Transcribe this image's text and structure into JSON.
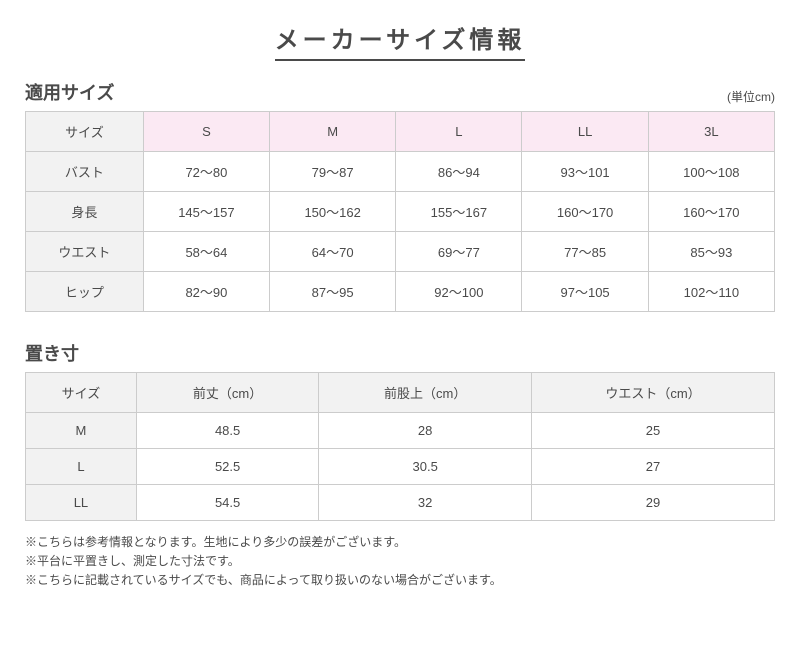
{
  "main_title": "メーカーサイズ情報",
  "section1": {
    "title": "適用サイズ",
    "unit": "(単位cm)",
    "table": {
      "colors": {
        "header_gray": "#f2f2f2",
        "header_pink": "#fbe9f3",
        "border": "#cccccc"
      },
      "header_row": [
        "サイズ",
        "S",
        "M",
        "L",
        "LL",
        "3L"
      ],
      "header_classes": [
        "hdr-gray",
        "hdr-pink",
        "hdr-pink",
        "hdr-pink",
        "hdr-pink",
        "hdr-pink"
      ],
      "rows": [
        {
          "label": "バスト",
          "values": [
            "72〜80",
            "79〜87",
            "86〜94",
            "93〜101",
            "100〜108"
          ]
        },
        {
          "label": "身長",
          "values": [
            "145〜157",
            "150〜162",
            "155〜167",
            "160〜170",
            "160〜170"
          ]
        },
        {
          "label": "ウエスト",
          "values": [
            "58〜64",
            "64〜70",
            "69〜77",
            "77〜85",
            "85〜93"
          ]
        },
        {
          "label": "ヒップ",
          "values": [
            "82〜90",
            "87〜95",
            "92〜100",
            "97〜105",
            "102〜110"
          ]
        }
      ]
    }
  },
  "section2": {
    "title": "置き寸",
    "table": {
      "colors": {
        "header_gray": "#f2f2f2",
        "border": "#cccccc"
      },
      "header_row": [
        "サイズ",
        "前丈（cm）",
        "前股上（cm）",
        "ウエスト（cm）"
      ],
      "header_classes": [
        "hdr-gray",
        "hdr-gray",
        "hdr-gray",
        "hdr-gray"
      ],
      "rows": [
        {
          "label": "M",
          "values": [
            "48.5",
            "28",
            "25"
          ]
        },
        {
          "label": "L",
          "values": [
            "52.5",
            "30.5",
            "27"
          ]
        },
        {
          "label": "LL",
          "values": [
            "54.5",
            "32",
            "29"
          ]
        }
      ]
    }
  },
  "notes": [
    "※こちらは参考情報となります。生地により多少の誤差がございます。",
    "※平台に平置きし、測定した寸法です。",
    "※こちらに記載されているサイズでも、商品によって取り扱いのない場合がございます。"
  ]
}
